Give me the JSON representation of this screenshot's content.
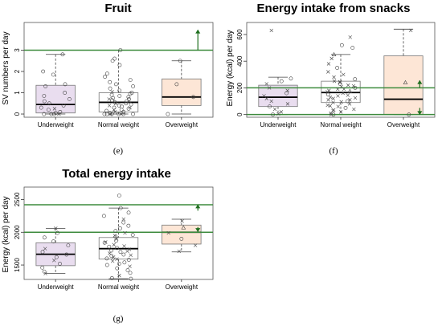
{
  "panels": [
    "(e)",
    "(f)",
    "(g)"
  ],
  "colors": {
    "underweight": "#e9ddef",
    "normal": "#ffffff",
    "overweight": "#fde6d6",
    "reference": "#3d8b3d",
    "arrow": "#1e6e1e"
  },
  "chart_data": [
    {
      "type": "box",
      "title": "Fruit",
      "ylabel": "SV numbers per day",
      "ylim": [
        -0.15,
        4.3
      ],
      "yticks": [
        0,
        1,
        2,
        3
      ],
      "categories": [
        "Underweight",
        "Normal weight",
        "Overweight"
      ],
      "reference_lines": [
        3
      ],
      "arrows": [
        {
          "category": "Overweight",
          "direction": "up",
          "from": 3.0,
          "to": 3.95
        }
      ],
      "boxes": [
        {
          "min": 0,
          "q1": 0.05,
          "median": 0.45,
          "q3": 1.35,
          "max": 2.8
        },
        {
          "min": 0,
          "q1": 0.1,
          "median": 0.55,
          "q3": 1.0,
          "max": 3.0
        },
        {
          "min": 0,
          "q1": 0.4,
          "median": 0.8,
          "q3": 1.65,
          "max": 2.5
        }
      ],
      "points": [
        [
          {
            "y": 2.8,
            "m": "o"
          },
          {
            "y": 2.0,
            "m": "o"
          },
          {
            "y": 1.85,
            "m": "o"
          },
          {
            "y": 1.4,
            "m": "o"
          },
          {
            "y": 1.3,
            "m": "o"
          },
          {
            "y": 1.0,
            "m": "o"
          },
          {
            "y": 0.85,
            "m": "o"
          },
          {
            "y": 0.7,
            "m": "o"
          },
          {
            "y": 0.5,
            "m": "o"
          },
          {
            "y": 0.4,
            "m": "o"
          },
          {
            "y": 0.3,
            "m": "o"
          },
          {
            "y": 0.2,
            "m": "o"
          },
          {
            "y": 0.1,
            "m": "o"
          },
          {
            "y": 0.05,
            "m": "o"
          },
          {
            "y": 0.0,
            "m": "o"
          },
          {
            "y": 0.0,
            "m": "o"
          },
          {
            "y": 0.0,
            "m": "x"
          },
          {
            "y": 0.0,
            "m": "o"
          },
          {
            "y": 0.25,
            "m": "x"
          },
          {
            "y": 0.6,
            "m": "o"
          }
        ],
        [
          {
            "y": 3.0,
            "m": "o"
          },
          {
            "y": 2.6,
            "m": "o"
          },
          {
            "y": 2.5,
            "m": "o"
          },
          {
            "y": 2.3,
            "m": "o"
          },
          {
            "y": 1.9,
            "m": "o"
          },
          {
            "y": 1.75,
            "m": "o"
          },
          {
            "y": 1.6,
            "m": "o"
          },
          {
            "y": 1.5,
            "m": "o"
          },
          {
            "y": 1.4,
            "m": "o"
          },
          {
            "y": 1.3,
            "m": "o"
          },
          {
            "y": 1.2,
            "m": "o"
          },
          {
            "y": 1.1,
            "m": "o"
          },
          {
            "y": 1.0,
            "m": "o"
          },
          {
            "y": 0.95,
            "m": "o"
          },
          {
            "y": 0.9,
            "m": "o"
          },
          {
            "y": 0.85,
            "m": "o"
          },
          {
            "y": 0.8,
            "m": "o"
          },
          {
            "y": 0.75,
            "m": "o"
          },
          {
            "y": 0.7,
            "m": "o"
          },
          {
            "y": 0.65,
            "m": "o"
          },
          {
            "y": 0.6,
            "m": "o"
          },
          {
            "y": 0.55,
            "m": "o"
          },
          {
            "y": 0.5,
            "m": "o"
          },
          {
            "y": 0.45,
            "m": "o"
          },
          {
            "y": 0.4,
            "m": "o"
          },
          {
            "y": 0.35,
            "m": "o"
          },
          {
            "y": 0.3,
            "m": "o"
          },
          {
            "y": 0.25,
            "m": "o"
          },
          {
            "y": 0.2,
            "m": "o"
          },
          {
            "y": 0.15,
            "m": "o"
          },
          {
            "y": 0.1,
            "m": "o"
          },
          {
            "y": 0.05,
            "m": "o"
          },
          {
            "y": 0.0,
            "m": "o"
          },
          {
            "y": 0.0,
            "m": "o"
          },
          {
            "y": 0.0,
            "m": "o"
          },
          {
            "y": 0.0,
            "m": "o"
          },
          {
            "y": 0.0,
            "m": "o"
          },
          {
            "y": 0.0,
            "m": "x"
          },
          {
            "y": 0.0,
            "m": "x"
          },
          {
            "y": 0.0,
            "m": "o"
          },
          {
            "y": 0.5,
            "m": "x"
          },
          {
            "y": 0.3,
            "m": "x"
          },
          {
            "y": 0.7,
            "m": "x"
          },
          {
            "y": 0.2,
            "m": "x"
          },
          {
            "y": 1.05,
            "m": "x"
          },
          {
            "y": 0.4,
            "m": "x"
          },
          {
            "y": 0.1,
            "m": "x"
          },
          {
            "y": 0.6,
            "m": "x"
          }
        ],
        [
          {
            "y": 2.5,
            "m": "o"
          },
          {
            "y": 1.4,
            "m": "o"
          },
          {
            "y": 0.8,
            "m": "o"
          },
          {
            "y": 0.0,
            "m": "o"
          }
        ]
      ]
    },
    {
      "type": "box",
      "title": "Energy intake from snacks",
      "ylabel": "Energy (kcal) per day",
      "ylim": [
        -20,
        690
      ],
      "yticks": [
        0,
        200,
        400,
        600
      ],
      "categories": [
        "Underweight",
        "Normal weight",
        "Overweight"
      ],
      "reference_lines": [
        200,
        0
      ],
      "arrows": [
        {
          "category": "Overweight",
          "direction": "up",
          "from": 200,
          "to": 255
        },
        {
          "category": "Overweight",
          "direction": "down",
          "from": 50,
          "to": 0
        }
      ],
      "boxes": [
        {
          "min": 0,
          "q1": 60,
          "median": 130,
          "q3": 220,
          "max": 280
        },
        {
          "min": 0,
          "q1": 90,
          "median": 165,
          "q3": 250,
          "max": 450
        },
        {
          "min": 0,
          "q1": 0,
          "median": 115,
          "q3": 440,
          "max": 640
        }
      ],
      "points": [
        [
          {
            "y": 630,
            "m": "x"
          },
          {
            "y": 270,
            "m": "o"
          },
          {
            "y": 250,
            "m": "o"
          },
          {
            "y": 230,
            "m": "x"
          },
          {
            "y": 200,
            "m": "x"
          },
          {
            "y": 180,
            "m": "x"
          },
          {
            "y": 160,
            "m": "o"
          },
          {
            "y": 140,
            "m": "x"
          },
          {
            "y": 120,
            "m": "x"
          },
          {
            "y": 100,
            "m": "x"
          },
          {
            "y": 80,
            "m": "x"
          },
          {
            "y": 60,
            "m": "o"
          },
          {
            "y": 40,
            "m": "x"
          },
          {
            "y": 20,
            "m": "x"
          },
          {
            "y": 5,
            "m": "x"
          },
          {
            "y": 0,
            "m": "o"
          }
        ],
        [
          {
            "y": 580,
            "m": "x"
          },
          {
            "y": 520,
            "m": "o"
          },
          {
            "y": 500,
            "m": "o"
          },
          {
            "y": 450,
            "m": "^"
          },
          {
            "y": 420,
            "m": "x"
          },
          {
            "y": 380,
            "m": "x"
          },
          {
            "y": 350,
            "m": "o"
          },
          {
            "y": 320,
            "m": "x"
          },
          {
            "y": 300,
            "m": "x"
          },
          {
            "y": 280,
            "m": "x"
          },
          {
            "y": 265,
            "m": "o"
          },
          {
            "y": 250,
            "m": "x"
          },
          {
            "y": 240,
            "m": "x"
          },
          {
            "y": 230,
            "m": "o"
          },
          {
            "y": 220,
            "m": "x"
          },
          {
            "y": 210,
            "m": "x"
          },
          {
            "y": 200,
            "m": "o"
          },
          {
            "y": 190,
            "m": "x"
          },
          {
            "y": 180,
            "m": "x"
          },
          {
            "y": 170,
            "m": "x"
          },
          {
            "y": 160,
            "m": "x"
          },
          {
            "y": 150,
            "m": "o"
          },
          {
            "y": 140,
            "m": "x"
          },
          {
            "y": 130,
            "m": "x"
          },
          {
            "y": 120,
            "m": "x"
          },
          {
            "y": 110,
            "m": "x"
          },
          {
            "y": 100,
            "m": "o"
          },
          {
            "y": 90,
            "m": "x"
          },
          {
            "y": 80,
            "m": "x"
          },
          {
            "y": 70,
            "m": "x"
          },
          {
            "y": 60,
            "m": "x"
          },
          {
            "y": 50,
            "m": "o"
          },
          {
            "y": 40,
            "m": "x"
          },
          {
            "y": 30,
            "m": "x"
          },
          {
            "y": 20,
            "m": "x"
          },
          {
            "y": 10,
            "m": "x"
          },
          {
            "y": 0,
            "m": "x"
          },
          {
            "y": 0,
            "m": "o"
          },
          {
            "y": 175,
            "m": "^"
          },
          {
            "y": 125,
            "m": "x"
          },
          {
            "y": 215,
            "m": "x"
          },
          {
            "y": 95,
            "m": "x"
          },
          {
            "y": 145,
            "m": "x"
          },
          {
            "y": 65,
            "m": "x"
          },
          {
            "y": 245,
            "m": "x"
          },
          {
            "y": 35,
            "m": "x"
          },
          {
            "y": 190,
            "m": "x"
          },
          {
            "y": 110,
            "m": "x"
          }
        ],
        [
          {
            "y": 630,
            "m": "x"
          },
          {
            "y": 240,
            "m": "^"
          },
          {
            "y": 0,
            "m": "o"
          }
        ]
      ]
    },
    {
      "type": "box",
      "title": "Total energy intake",
      "ylabel": "Energy (kcal) per day",
      "ylim": [
        1280,
        2690
      ],
      "yticks": [
        1500,
        2000,
        2500
      ],
      "categories": [
        "Underweight",
        "Normal weight",
        "Overweight"
      ],
      "reference_lines": [
        2420,
        2000
      ],
      "arrows": [
        {
          "category": "Overweight",
          "direction": "up",
          "from": 2330,
          "to": 2420
        },
        {
          "category": "Overweight",
          "direction": "down",
          "from": 2080,
          "to": 2010
        }
      ],
      "boxes": [
        {
          "min": 1370,
          "q1": 1490,
          "median": 1665,
          "q3": 1840,
          "max": 2060
        },
        {
          "min": 1290,
          "q1": 1590,
          "median": 1750,
          "q3": 1920,
          "max": 2370
        },
        {
          "min": 1700,
          "q1": 1820,
          "median": 2000,
          "q3": 2110,
          "max": 2200
        }
      ],
      "points": [
        [
          {
            "y": 2060,
            "m": "x"
          },
          {
            "y": 1990,
            "m": "o"
          },
          {
            "y": 1920,
            "m": "o"
          },
          {
            "y": 1860,
            "m": "o"
          },
          {
            "y": 1800,
            "m": "o"
          },
          {
            "y": 1750,
            "m": "x"
          },
          {
            "y": 1700,
            "m": "o"
          },
          {
            "y": 1660,
            "m": "o"
          },
          {
            "y": 1620,
            "m": "o"
          },
          {
            "y": 1570,
            "m": "x"
          },
          {
            "y": 1520,
            "m": "o"
          },
          {
            "y": 1460,
            "m": "o"
          },
          {
            "y": 1400,
            "m": "o"
          },
          {
            "y": 1370,
            "m": "x"
          }
        ],
        [
          {
            "y": 2560,
            "m": "o"
          },
          {
            "y": 2370,
            "m": "o"
          },
          {
            "y": 2300,
            "m": "o"
          },
          {
            "y": 2250,
            "m": "o"
          },
          {
            "y": 2200,
            "m": "x"
          },
          {
            "y": 2150,
            "m": "o"
          },
          {
            "y": 2100,
            "m": "o"
          },
          {
            "y": 2060,
            "m": "o"
          },
          {
            "y": 2020,
            "m": "o"
          },
          {
            "y": 1990,
            "m": "x"
          },
          {
            "y": 1960,
            "m": "o"
          },
          {
            "y": 1930,
            "m": "o"
          },
          {
            "y": 1900,
            "m": "x"
          },
          {
            "y": 1870,
            "m": "o"
          },
          {
            "y": 1840,
            "m": "o"
          },
          {
            "y": 1810,
            "m": "x"
          },
          {
            "y": 1780,
            "m": "o"
          },
          {
            "y": 1760,
            "m": "o"
          },
          {
            "y": 1740,
            "m": "x"
          },
          {
            "y": 1720,
            "m": "o"
          },
          {
            "y": 1700,
            "m": "o"
          },
          {
            "y": 1680,
            "m": "x"
          },
          {
            "y": 1660,
            "m": "o"
          },
          {
            "y": 1640,
            "m": "o"
          },
          {
            "y": 1620,
            "m": "x"
          },
          {
            "y": 1600,
            "m": "o"
          },
          {
            "y": 1580,
            "m": "o"
          },
          {
            "y": 1560,
            "m": "x"
          },
          {
            "y": 1540,
            "m": "o"
          },
          {
            "y": 1520,
            "m": "o"
          },
          {
            "y": 1500,
            "m": "o"
          },
          {
            "y": 1480,
            "m": "x"
          },
          {
            "y": 1450,
            "m": "o"
          },
          {
            "y": 1420,
            "m": "o"
          },
          {
            "y": 1380,
            "m": "o"
          },
          {
            "y": 1340,
            "m": "x"
          },
          {
            "y": 1300,
            "m": "o"
          },
          {
            "y": 1290,
            "m": "o"
          },
          {
            "y": 1850,
            "m": "x"
          },
          {
            "y": 1790,
            "m": "x"
          },
          {
            "y": 1710,
            "m": "x"
          },
          {
            "y": 1950,
            "m": "x"
          },
          {
            "y": 1650,
            "m": "x"
          },
          {
            "y": 1590,
            "m": "x"
          }
        ],
        [
          {
            "y": 2170,
            "m": "x"
          },
          {
            "y": 2070,
            "m": "^"
          },
          {
            "y": 1990,
            "m": "x"
          },
          {
            "y": 1900,
            "m": "o"
          },
          {
            "y": 1800,
            "m": "x"
          },
          {
            "y": 1710,
            "m": "x"
          }
        ]
      ]
    }
  ]
}
